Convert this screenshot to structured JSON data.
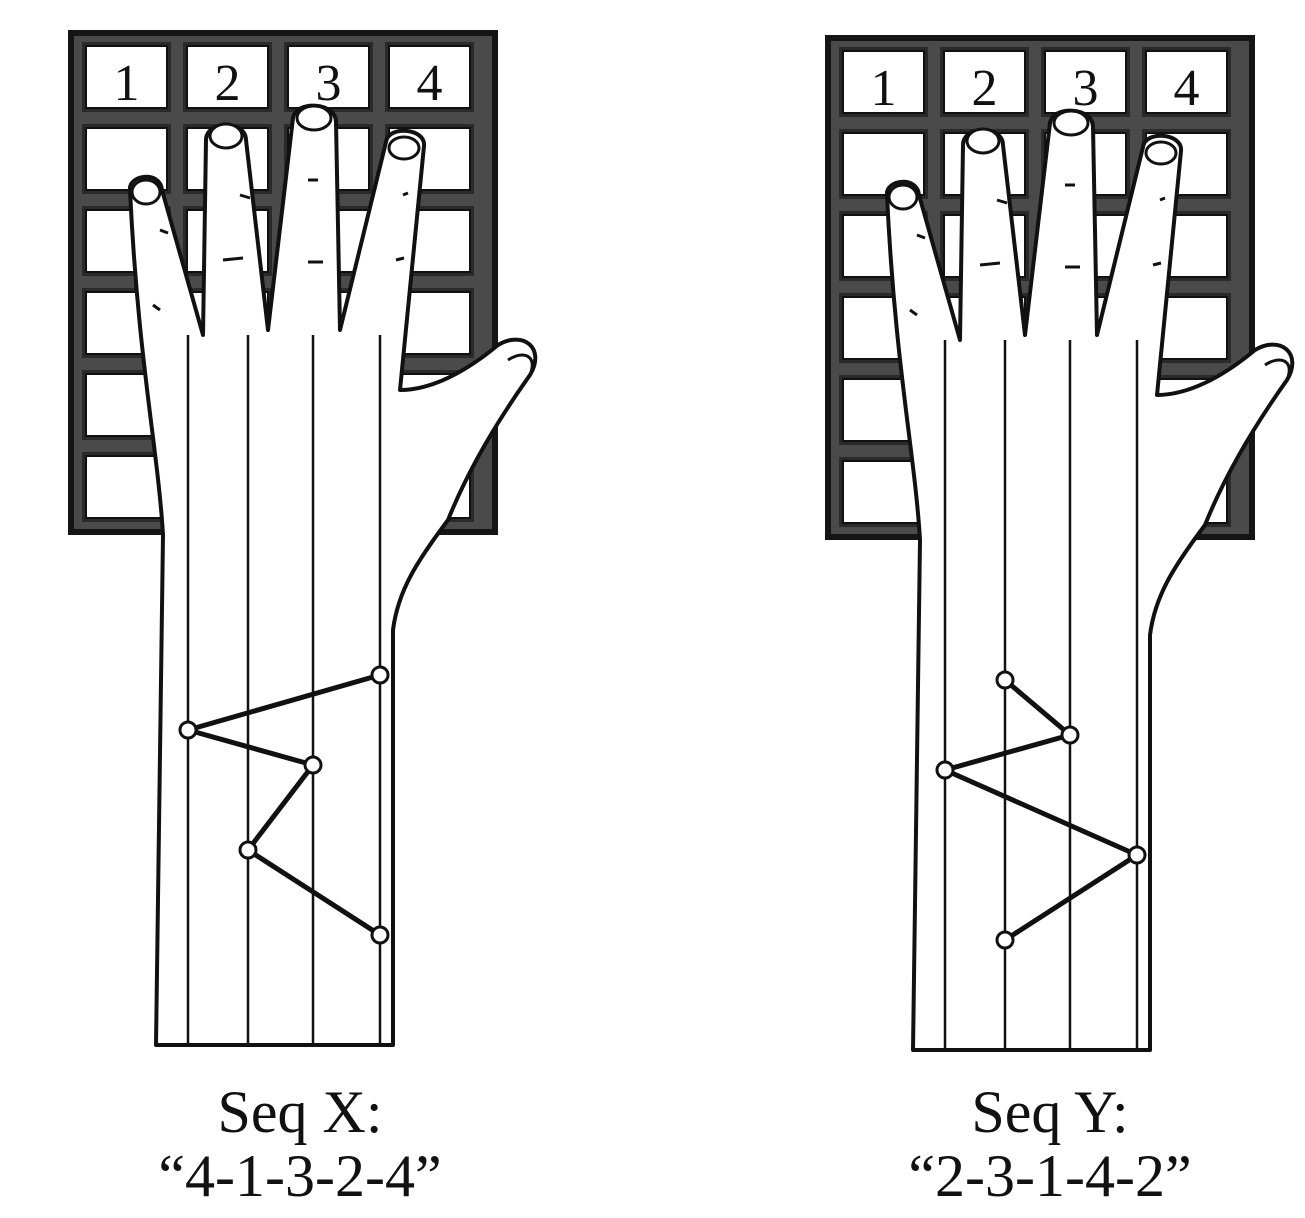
{
  "panels": [
    {
      "key_labels": [
        "1",
        "2",
        "3",
        "4"
      ],
      "seq_label": "Seq X:",
      "seq_value": "“4-1-3-2-4”",
      "sequence": [
        4,
        1,
        3,
        2,
        4
      ]
    },
    {
      "key_labels": [
        "1",
        "2",
        "3",
        "4"
      ],
      "seq_label": "Seq Y:",
      "seq_value": "“2-3-1-4-2”",
      "sequence": [
        2,
        3,
        1,
        4,
        2
      ]
    }
  ]
}
